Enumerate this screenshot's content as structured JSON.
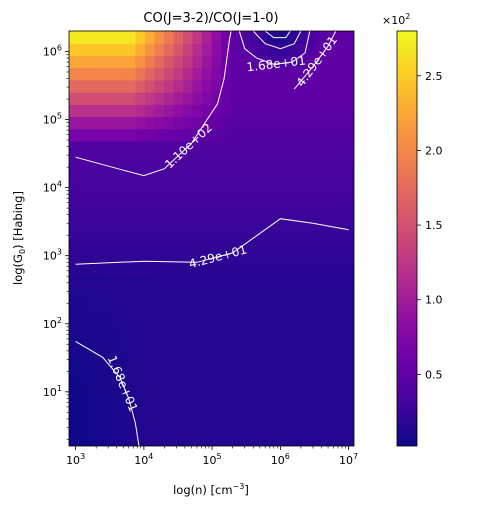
{
  "chart_data": {
    "type": "heatmap",
    "title": "CO(J=3-2)/CO(J=1-0)",
    "xlabel": "log(n) [cm",
    "xlabel_sup": "−3",
    "xlabel_end": "]",
    "ylabel": "log(G",
    "ylabel_sub": "0",
    "ylabel_end": ") [Habing]",
    "x_scale": "log",
    "y_scale": "log",
    "xlim": [
      800,
      12000000
    ],
    "ylim": [
      1.6,
      2000000
    ],
    "x_ticks": [
      {
        "value": 1000,
        "base": "10",
        "exp": "3"
      },
      {
        "value": 10000,
        "base": "10",
        "exp": "4"
      },
      {
        "value": 100000,
        "base": "10",
        "exp": "5"
      },
      {
        "value": 1000000,
        "base": "10",
        "exp": "6"
      },
      {
        "value": 10000000,
        "base": "10",
        "exp": "7"
      }
    ],
    "y_ticks": [
      {
        "value": 10,
        "base": "10",
        "exp": "1"
      },
      {
        "value": 100,
        "base": "10",
        "exp": "2"
      },
      {
        "value": 1000,
        "base": "10",
        "exp": "3"
      },
      {
        "value": 10000,
        "base": "10",
        "exp": "4"
      },
      {
        "value": 100000,
        "base": "10",
        "exp": "5"
      },
      {
        "value": 1000000,
        "base": "10",
        "exp": "6"
      }
    ],
    "colorbar": {
      "colormap": "plasma",
      "range": [
        0.02,
        2.8
      ],
      "ticks": [
        "0.5",
        "1.0",
        "1.5",
        "2.0",
        "2.5"
      ],
      "tick_values": [
        0.5,
        1.0,
        1.5,
        2.0,
        2.5
      ],
      "multiplier_base": "×10",
      "multiplier_exp": "2"
    },
    "contours": [
      {
        "level": 16.8,
        "label": "1.68e+01",
        "points": [
          [
            1000,
            55
          ],
          [
            2500,
            32
          ],
          [
            4500,
            16
          ],
          [
            6000,
            8
          ],
          [
            7500,
            3.5
          ],
          [
            8500,
            1.6
          ]
        ]
      },
      {
        "level": 16.8,
        "label": "1.68e+01",
        "points": [
          [
            250000,
            2000000
          ],
          [
            300000,
            1100000
          ],
          [
            450000,
            800000
          ],
          [
            800000,
            650000
          ],
          [
            1500000,
            700000
          ],
          [
            2300000,
            950000
          ],
          [
            2700000,
            2000000
          ]
        ]
      },
      {
        "level": 42.9,
        "label": "4.29e+01",
        "points": [
          [
            1000,
            750
          ],
          [
            10000,
            830
          ],
          [
            60000,
            800
          ],
          [
            200000,
            1100
          ],
          [
            1000000,
            3500
          ],
          [
            3000000,
            3000
          ],
          [
            10000000,
            2400
          ]
        ]
      },
      {
        "level": 42.9,
        "label": "4.29e+01",
        "points": [
          [
            1600000,
            280000
          ],
          [
            3000000,
            600000
          ],
          [
            5000000,
            1200000
          ],
          [
            6500000,
            2000000
          ]
        ]
      },
      {
        "level": 110,
        "label": "1.10e+02",
        "points": [
          [
            1000,
            28000
          ],
          [
            5000,
            18000
          ],
          [
            10000,
            15000
          ],
          [
            20000,
            19000
          ],
          [
            50000,
            45000
          ],
          [
            90000,
            110000
          ],
          [
            120000,
            170000
          ],
          [
            150000,
            400000
          ],
          [
            180000,
            1500000
          ],
          [
            190000,
            2000000
          ]
        ]
      },
      {
        "level": 172,
        "label": "",
        "points": [
          [
            400000,
            2000000
          ],
          [
            600000,
            1300000
          ],
          [
            1000000,
            1100000
          ],
          [
            1600000,
            1300000
          ],
          [
            2000000,
            2000000
          ]
        ]
      },
      {
        "level": 242,
        "label": "",
        "points": [
          [
            600000,
            2000000
          ],
          [
            800000,
            1600000
          ],
          [
            1200000,
            1600000
          ],
          [
            1400000,
            2000000
          ]
        ]
      }
    ]
  }
}
